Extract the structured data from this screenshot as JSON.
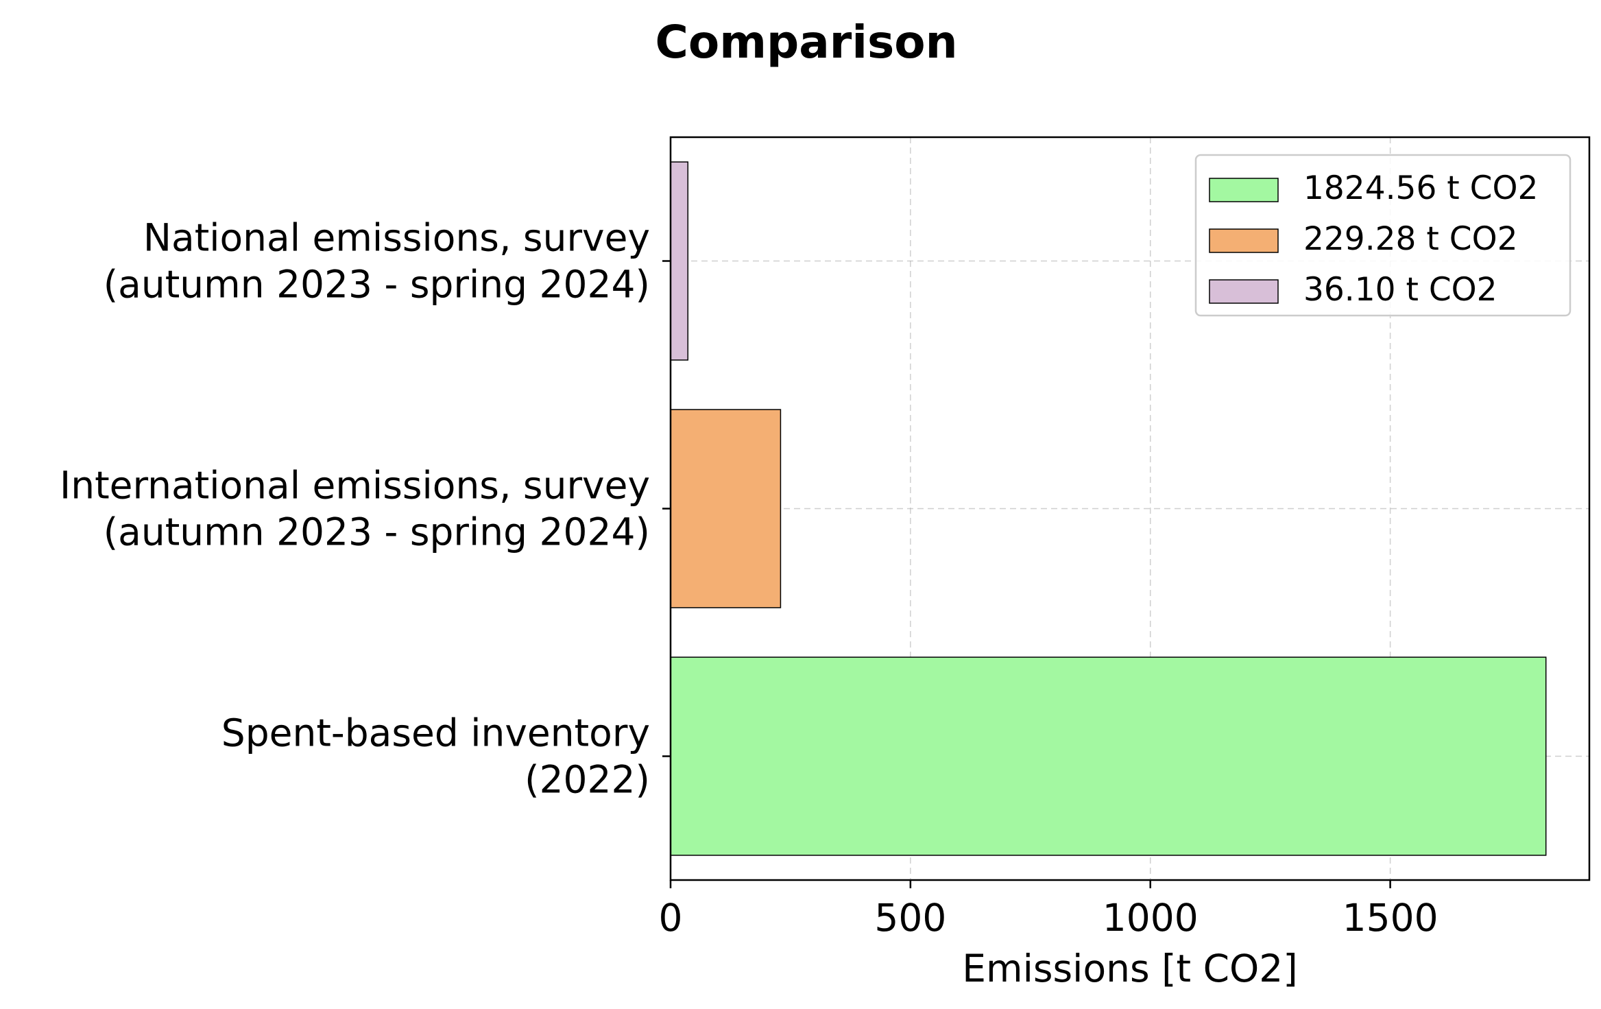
{
  "chart_data": {
    "type": "bar",
    "orientation": "horizontal",
    "title": "Comparison",
    "xlabel": "Emissions [t CO2]",
    "ylabel": "",
    "xlim": [
      0,
      1915
    ],
    "xticks": [
      0,
      500,
      1000,
      1500
    ],
    "grid": true,
    "legend_position": "top-right",
    "categories": [
      {
        "lines": [
          "Spent-based inventory",
          "(2022)"
        ],
        "value": 1824.56,
        "color": "#a3f8a1",
        "legend_label": "1824.56 t CO2"
      },
      {
        "lines": [
          "International emissions, survey",
          "(autumn 2023 - spring 2024)"
        ],
        "value": 229.28,
        "color": "#f4af73",
        "legend_label": "229.28 t CO2"
      },
      {
        "lines": [
          "National emissions, survey",
          "(autumn 2023 - spring 2024)"
        ],
        "value": 36.1,
        "color": "#d8bfd8",
        "legend_label": "36.10 t CO2"
      }
    ]
  }
}
